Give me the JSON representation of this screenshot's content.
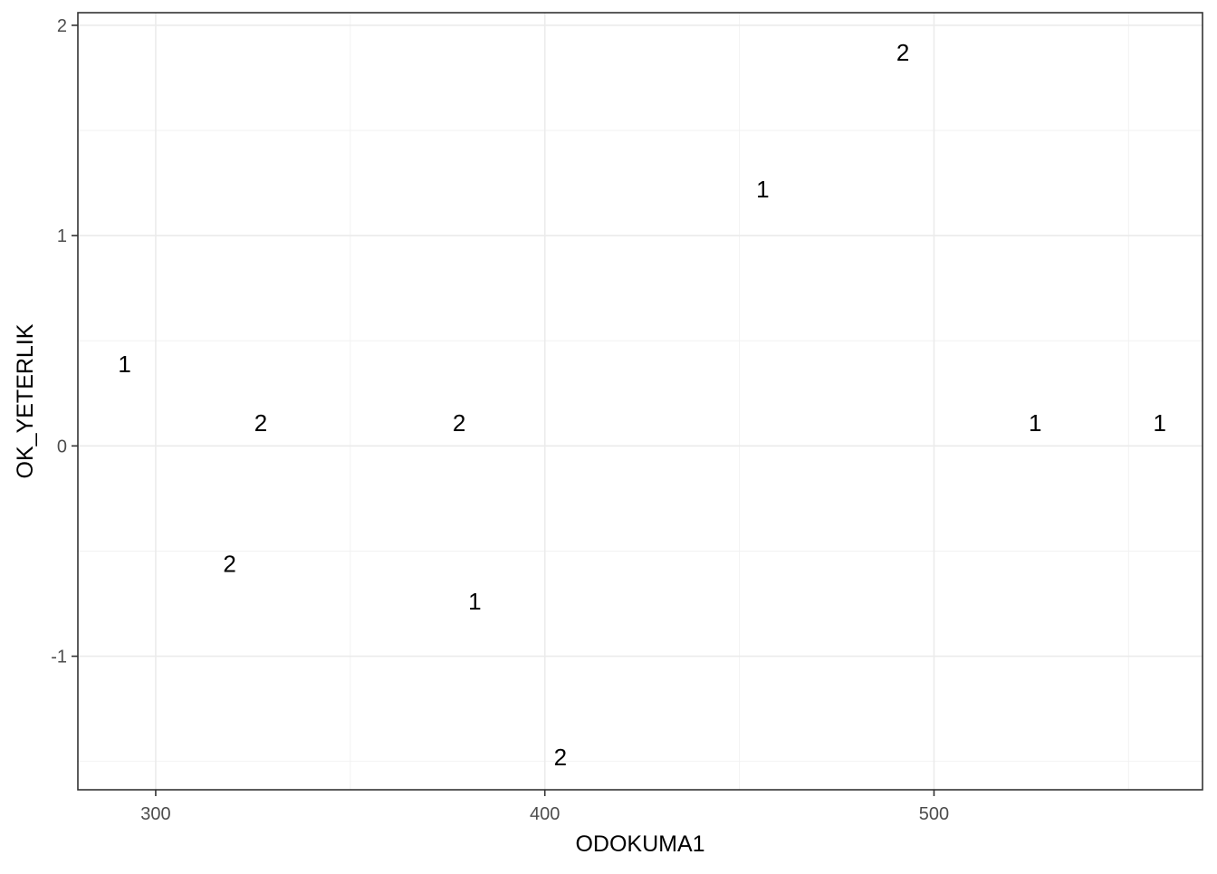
{
  "chart_data": {
    "type": "scatter",
    "xlabel": "ODOKUMA1",
    "ylabel": "OK_YETERLIK",
    "xlim": [
      280,
      569
    ],
    "ylim": [
      -1.635,
      2.06
    ],
    "x_ticks": [
      300,
      400,
      500
    ],
    "x_tick_labels": [
      "300",
      "400",
      "500"
    ],
    "y_ticks": [
      -1,
      0,
      1,
      2
    ],
    "y_tick_labels": [
      "-1",
      "0",
      "1",
      "2"
    ],
    "grid": true,
    "points": [
      {
        "x": 292,
        "y": 0.39,
        "label": "1"
      },
      {
        "x": 327,
        "y": 0.11,
        "label": "2"
      },
      {
        "x": 319,
        "y": -0.56,
        "label": "2"
      },
      {
        "x": 378,
        "y": 0.11,
        "label": "2"
      },
      {
        "x": 382,
        "y": -0.74,
        "label": "1"
      },
      {
        "x": 404,
        "y": -1.48,
        "label": "2"
      },
      {
        "x": 456,
        "y": 1.22,
        "label": "1"
      },
      {
        "x": 492,
        "y": 1.87,
        "label": "2"
      },
      {
        "x": 526,
        "y": 0.11,
        "label": "1"
      },
      {
        "x": 558,
        "y": 0.11,
        "label": "1"
      }
    ]
  }
}
